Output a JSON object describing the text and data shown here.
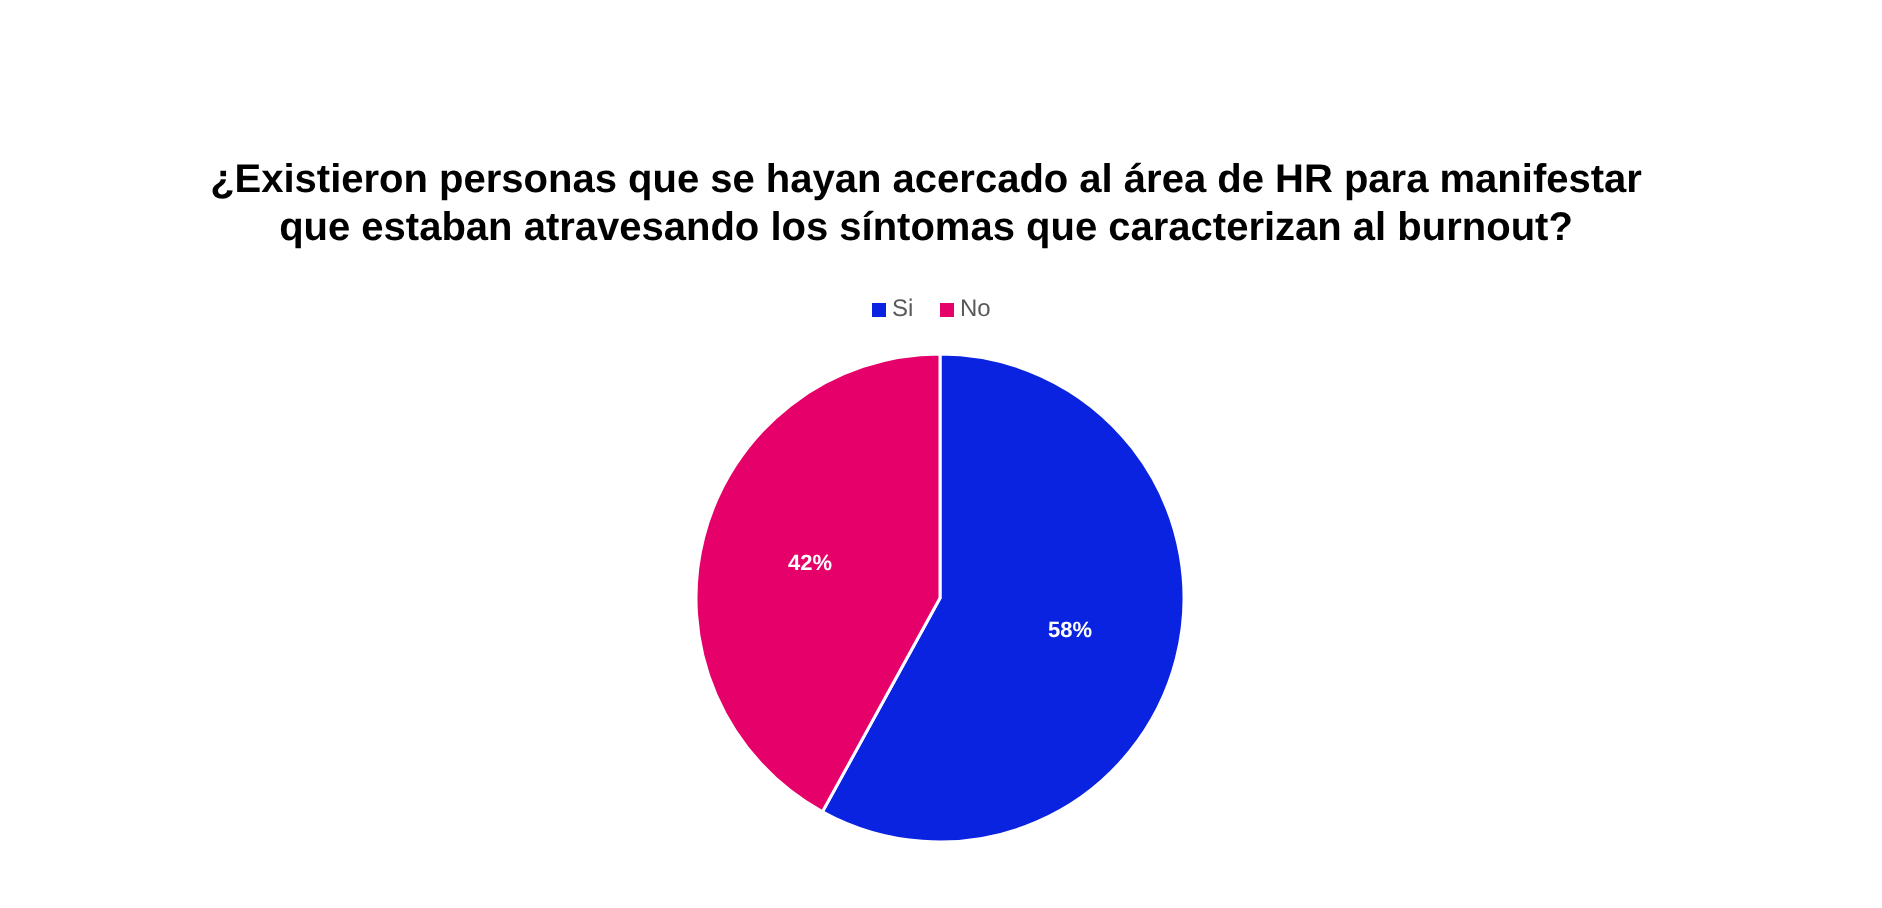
{
  "chart_data": {
    "type": "pie",
    "title": "¿Existieron personas que se hayan acercado al área de HR para manifestar\nque estaban atravesando los síntomas que caracterizan al burnout?",
    "categories": [
      "Si",
      "No"
    ],
    "values": [
      58,
      42
    ],
    "colors": [
      "#0a23e0",
      "#e5006a"
    ],
    "value_labels": [
      "58%",
      "42%"
    ],
    "legend": "top"
  }
}
